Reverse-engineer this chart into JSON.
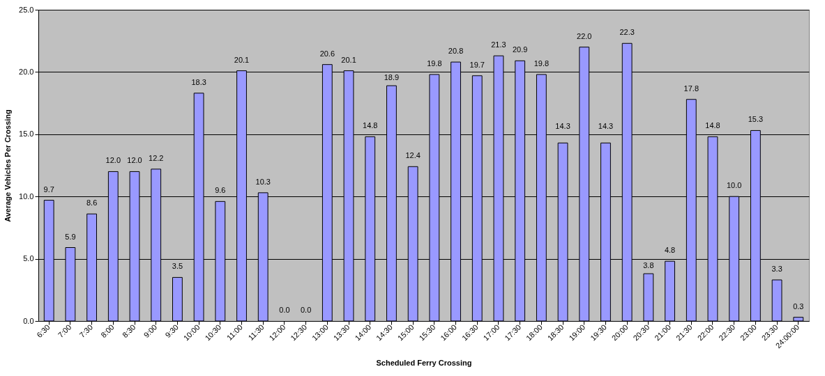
{
  "chart_data": {
    "type": "bar",
    "xlabel": "Scheduled Ferry Crossing",
    "ylabel": "Average Vehicles Per Crossing",
    "categories": [
      "6:30",
      "7:00",
      "7:30",
      "8:00",
      "8:30",
      "9:00",
      "9:30",
      "10:00",
      "10:30",
      "11:00",
      "11:30",
      "12:00",
      "12:30",
      "13:00",
      "13:30",
      "14:00",
      "14:30",
      "15:00",
      "15:30",
      "16:00",
      "16:30",
      "17:00",
      "17:30",
      "18:00",
      "18:30",
      "19:00",
      "19:30",
      "20:00",
      "20:30",
      "21:00",
      "21:30",
      "22:00",
      "22:30",
      "23:00",
      "23:30",
      "24:00:00"
    ],
    "values": [
      9.7,
      5.9,
      8.6,
      12.0,
      12.0,
      12.2,
      3.5,
      18.3,
      9.6,
      20.1,
      10.3,
      0.0,
      0.0,
      20.6,
      20.1,
      14.8,
      18.9,
      12.4,
      19.8,
      20.8,
      19.7,
      21.3,
      20.9,
      19.8,
      14.3,
      22.0,
      14.3,
      22.3,
      3.8,
      4.8,
      17.8,
      14.8,
      10.0,
      15.3,
      3.3,
      0.3
    ],
    "value_labels": [
      "9.7",
      "5.9",
      "8.6",
      "12.0",
      "12.0",
      "12.2",
      "3.5",
      "18.3",
      "9.6",
      "20.1",
      "10.3",
      "0.0",
      "0.0",
      "20.6",
      "20.1",
      "14.8",
      "18.9",
      "12.4",
      "19.8",
      "20.8",
      "19.7",
      "21.3",
      "20.9",
      "19.8",
      "14.3",
      "22.0",
      "14.3",
      "22.3",
      "3.8",
      "4.8",
      "17.8",
      "14.8",
      "10.0",
      "15.3",
      "3.3",
      "0.3"
    ],
    "color": "#9999ff",
    "ylim": [
      0,
      25
    ],
    "yticks": [
      {
        "value": 0,
        "label": "0.0"
      },
      {
        "value": 5,
        "label": "5.0"
      },
      {
        "value": 10,
        "label": "10.0"
      },
      {
        "value": 15,
        "label": "15.0"
      },
      {
        "value": 20,
        "label": "20.0"
      },
      {
        "value": 25,
        "label": "25.0"
      }
    ],
    "grid": "y"
  }
}
